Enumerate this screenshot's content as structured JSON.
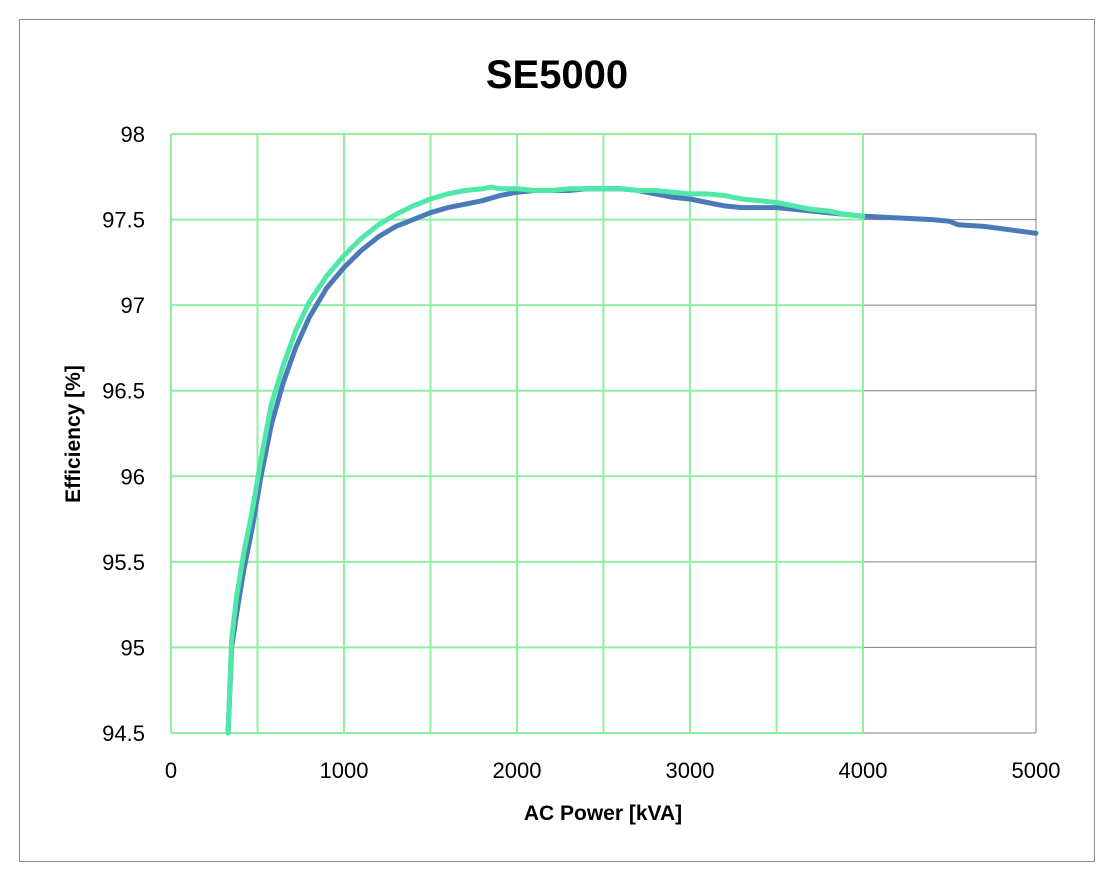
{
  "chart_data": {
    "type": "line",
    "title": "SE5000",
    "xlabel": "AC Power [kVA]",
    "ylabel": "Efficiency [%]",
    "xlim": [
      0,
      5000
    ],
    "ylim": [
      94.5,
      98
    ],
    "xticks": [
      0,
      1000,
      2000,
      3000,
      4000,
      5000
    ],
    "yticks": [
      94.5,
      95,
      95.5,
      96,
      96.5,
      97,
      97.5,
      98
    ],
    "x_tick_labels": [
      "0",
      "1000",
      "2000",
      "3000",
      "4000",
      "5000"
    ],
    "y_tick_labels": [
      "94.5",
      "95",
      "95.5",
      "96",
      "96.5",
      "97",
      "97.5",
      "98"
    ],
    "grid": true,
    "legend": "none",
    "colors": {
      "series_main": "#4a7ab8",
      "series_overlay": "#4fe8a8",
      "grid_gray": "#808080",
      "grid_green": "#8ff0a0"
    },
    "series": [
      {
        "x": [
          330,
          350,
          380,
          420,
          470,
          520,
          580,
          650,
          720,
          800,
          900,
          1000,
          1100,
          1200,
          1300,
          1400,
          1500,
          1600,
          1700,
          1800,
          1900,
          2000,
          2100,
          2200,
          2300,
          2400,
          2500,
          2600,
          2700,
          2800,
          2900,
          3000,
          3100,
          3200,
          3300,
          3400,
          3500,
          3600,
          3700,
          3800,
          3900,
          4000,
          4200,
          4400,
          4500,
          4550,
          4700,
          4850,
          5000
        ],
        "values": [
          94.5,
          95.0,
          95.2,
          95.45,
          95.7,
          96.0,
          96.3,
          96.55,
          96.75,
          96.93,
          97.1,
          97.22,
          97.32,
          97.4,
          97.46,
          97.5,
          97.54,
          97.57,
          97.59,
          97.61,
          97.64,
          97.66,
          97.67,
          97.67,
          97.67,
          97.68,
          97.68,
          97.68,
          97.67,
          97.65,
          97.63,
          97.62,
          97.6,
          97.58,
          97.57,
          97.57,
          97.57,
          97.56,
          97.55,
          97.54,
          97.53,
          97.52,
          97.51,
          97.5,
          97.49,
          97.47,
          97.46,
          97.44,
          97.42
        ]
      },
      {
        "x": [
          330,
          350,
          380,
          420,
          470,
          520,
          580,
          650,
          720,
          800,
          900,
          1000,
          1100,
          1200,
          1300,
          1400,
          1500,
          1600,
          1700,
          1800,
          1850,
          1900,
          2000,
          2100,
          2200,
          2300,
          2400,
          2500,
          2600,
          2700,
          2800,
          2900,
          3000,
          3100,
          3200,
          3300,
          3400,
          3500,
          3600,
          3700,
          3800,
          3900,
          4000
        ],
        "values": [
          94.5,
          95.05,
          95.3,
          95.55,
          95.8,
          96.1,
          96.42,
          96.65,
          96.85,
          97.02,
          97.17,
          97.29,
          97.39,
          97.47,
          97.53,
          97.58,
          97.62,
          97.65,
          97.67,
          97.68,
          97.69,
          97.68,
          97.68,
          97.67,
          97.67,
          97.68,
          97.68,
          97.68,
          97.68,
          97.67,
          97.67,
          97.66,
          97.65,
          97.65,
          97.64,
          97.62,
          97.61,
          97.6,
          97.58,
          97.56,
          97.55,
          97.53,
          97.52
        ]
      }
    ]
  }
}
